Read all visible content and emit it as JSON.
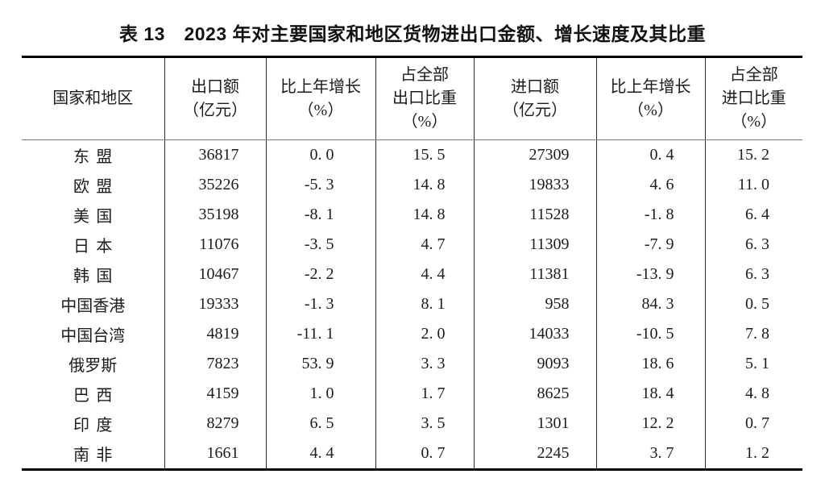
{
  "table": {
    "title": "表 13　2023 年对主要国家和地区货物进出口金额、增长速度及其比重",
    "columns": [
      {
        "id": "region",
        "label_lines": [
          "国家和地区"
        ]
      },
      {
        "id": "export_value",
        "label_lines": [
          "出口额",
          "（亿元）"
        ]
      },
      {
        "id": "export_growth",
        "label_lines": [
          "比上年增长",
          "（%）"
        ]
      },
      {
        "id": "export_share",
        "label_lines": [
          "占全部",
          "出口比重",
          "（%）"
        ]
      },
      {
        "id": "import_value",
        "label_lines": [
          "进口额",
          "（亿元）"
        ]
      },
      {
        "id": "import_growth",
        "label_lines": [
          "比上年增长",
          "（%）"
        ]
      },
      {
        "id": "import_share",
        "label_lines": [
          "占全部",
          "进口比重",
          "（%）"
        ]
      }
    ],
    "rows": [
      {
        "region": "东盟",
        "values": [
          "36817",
          "0.0",
          "15.5",
          "27309",
          "0.4",
          "15.2"
        ]
      },
      {
        "region": "欧盟",
        "values": [
          "35226",
          "-5.3",
          "14.8",
          "19833",
          "4.6",
          "11.0"
        ]
      },
      {
        "region": "美国",
        "values": [
          "35198",
          "-8.1",
          "14.8",
          "11528",
          "-1.8",
          "6.4"
        ]
      },
      {
        "region": "日本",
        "values": [
          "11076",
          "-3.5",
          "4.7",
          "11309",
          "-7.9",
          "6.3"
        ]
      },
      {
        "region": "韩国",
        "values": [
          "10467",
          "-2.2",
          "4.4",
          "11381",
          "-13.9",
          "6.3"
        ]
      },
      {
        "region": "中国香港",
        "values": [
          "19333",
          "-1.3",
          "8.1",
          "958",
          "84.3",
          "0.5"
        ]
      },
      {
        "region": "中国台湾",
        "values": [
          "4819",
          "-11.1",
          "2.0",
          "14033",
          "-10.5",
          "7.8"
        ]
      },
      {
        "region": "俄罗斯",
        "values": [
          "7823",
          "53.9",
          "3.3",
          "9093",
          "18.6",
          "5.1"
        ]
      },
      {
        "region": "巴西",
        "values": [
          "4159",
          "1.0",
          "1.7",
          "8625",
          "18.4",
          "4.8"
        ]
      },
      {
        "region": "印度",
        "values": [
          "8279",
          "6.5",
          "3.5",
          "1301",
          "12.2",
          "0.7"
        ]
      },
      {
        "region": "南非",
        "values": [
          "1661",
          "4.4",
          "0.7",
          "2245",
          "3.7",
          "1.2"
        ]
      }
    ]
  }
}
